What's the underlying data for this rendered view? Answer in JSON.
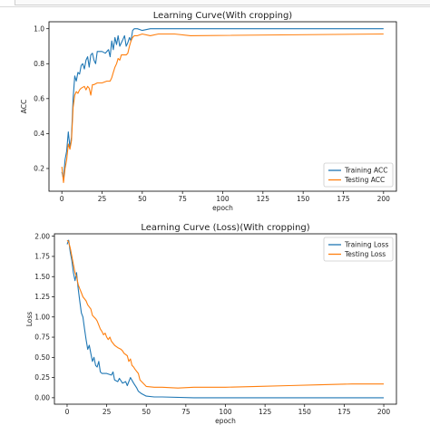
{
  "colors": {
    "training": "#1f77b4",
    "testing": "#ff7f0e"
  },
  "chart_data": [
    {
      "type": "line",
      "title": "Learning Curve(With cropping)",
      "xlabel": "epoch",
      "ylabel": "ACC",
      "xlim": [
        -8,
        208
      ],
      "ylim": [
        0.07,
        1.04
      ],
      "xticks": [
        0,
        25,
        50,
        75,
        100,
        125,
        150,
        175,
        200
      ],
      "yticks": [
        0.2,
        0.4,
        0.6,
        0.8,
        1.0
      ],
      "ytick_labels": [
        "0.2",
        "0.4",
        "0.6",
        "0.8",
        "1.0"
      ],
      "legend": "lower-right",
      "grid": false,
      "series": [
        {
          "name": "Training ACC",
          "points": [
            [
              0,
              0.18
            ],
            [
              1,
              0.14
            ],
            [
              2,
              0.25
            ],
            [
              3,
              0.3
            ],
            [
              4,
              0.41
            ],
            [
              5,
              0.32
            ],
            [
              6,
              0.38
            ],
            [
              7,
              0.6
            ],
            [
              8,
              0.73
            ],
            [
              9,
              0.7
            ],
            [
              10,
              0.75
            ],
            [
              11,
              0.74
            ],
            [
              12,
              0.79
            ],
            [
              13,
              0.8
            ],
            [
              14,
              0.77
            ],
            [
              15,
              0.82
            ],
            [
              16,
              0.84
            ],
            [
              17,
              0.78
            ],
            [
              18,
              0.85
            ],
            [
              19,
              0.86
            ],
            [
              20,
              0.82
            ],
            [
              21,
              0.8
            ],
            [
              22,
              0.87
            ],
            [
              23,
              0.87
            ],
            [
              25,
              0.87
            ],
            [
              27,
              0.86
            ],
            [
              29,
              0.88
            ],
            [
              30,
              0.84
            ],
            [
              31,
              0.93
            ],
            [
              32,
              0.88
            ],
            [
              33,
              0.95
            ],
            [
              34,
              0.91
            ],
            [
              35,
              0.96
            ],
            [
              36,
              0.9
            ],
            [
              37,
              0.92
            ],
            [
              38,
              0.94
            ],
            [
              39,
              0.96
            ],
            [
              40,
              0.9
            ],
            [
              41,
              0.92
            ],
            [
              42,
              0.95
            ],
            [
              43,
              0.93
            ],
            [
              44,
              0.99
            ],
            [
              45,
              1.0
            ],
            [
              47,
              1.0
            ],
            [
              50,
              0.99
            ],
            [
              55,
              1.0
            ],
            [
              200,
              1.0
            ]
          ]
        },
        {
          "name": "Testing ACC",
          "points": [
            [
              0,
              0.21
            ],
            [
              1,
              0.12
            ],
            [
              2,
              0.2
            ],
            [
              3,
              0.25
            ],
            [
              4,
              0.34
            ],
            [
              5,
              0.31
            ],
            [
              6,
              0.36
            ],
            [
              7,
              0.55
            ],
            [
              8,
              0.62
            ],
            [
              9,
              0.64
            ],
            [
              10,
              0.63
            ],
            [
              11,
              0.65
            ],
            [
              12,
              0.66
            ],
            [
              14,
              0.67
            ],
            [
              15,
              0.65
            ],
            [
              16,
              0.67
            ],
            [
              17,
              0.66
            ],
            [
              18,
              0.62
            ],
            [
              19,
              0.68
            ],
            [
              20,
              0.68
            ],
            [
              22,
              0.69
            ],
            [
              25,
              0.69
            ],
            [
              28,
              0.7
            ],
            [
              30,
              0.7
            ],
            [
              31,
              0.72
            ],
            [
              32,
              0.75
            ],
            [
              33,
              0.78
            ],
            [
              34,
              0.8
            ],
            [
              35,
              0.83
            ],
            [
              36,
              0.82
            ],
            [
              37,
              0.85
            ],
            [
              38,
              0.85
            ],
            [
              40,
              0.85
            ],
            [
              41,
              0.86
            ],
            [
              42,
              0.9
            ],
            [
              43,
              0.93
            ],
            [
              44,
              0.95
            ],
            [
              45,
              0.96
            ],
            [
              47,
              0.96
            ],
            [
              50,
              0.97
            ],
            [
              55,
              0.96
            ],
            [
              60,
              0.97
            ],
            [
              70,
              0.97
            ],
            [
              80,
              0.96
            ],
            [
              200,
              0.97
            ]
          ]
        }
      ]
    },
    {
      "type": "line",
      "title": "Learning Curve (Loss)(With cropping)",
      "xlabel": "epoch",
      "ylabel": "Loss",
      "xlim": [
        -8,
        208
      ],
      "ylim": [
        -0.08,
        2.03
      ],
      "xticks": [
        0,
        25,
        50,
        75,
        100,
        125,
        150,
        175,
        200
      ],
      "yticks": [
        0.0,
        0.25,
        0.5,
        0.75,
        1.0,
        1.25,
        1.5,
        1.75,
        2.0
      ],
      "ytick_labels": [
        "0.00",
        "0.25",
        "0.50",
        "0.75",
        "1.00",
        "1.25",
        "1.50",
        "1.75",
        "2.00"
      ],
      "legend": "upper-right",
      "grid": false,
      "series": [
        {
          "name": "Training Loss",
          "points": [
            [
              0,
              1.9
            ],
            [
              1,
              1.95
            ],
            [
              2,
              1.8
            ],
            [
              3,
              1.7
            ],
            [
              4,
              1.55
            ],
            [
              5,
              1.45
            ],
            [
              6,
              1.55
            ],
            [
              7,
              1.35
            ],
            [
              8,
              1.2
            ],
            [
              9,
              1.05
            ],
            [
              10,
              1.0
            ],
            [
              11,
              0.85
            ],
            [
              12,
              0.72
            ],
            [
              13,
              0.6
            ],
            [
              14,
              0.65
            ],
            [
              15,
              0.55
            ],
            [
              16,
              0.45
            ],
            [
              17,
              0.5
            ],
            [
              18,
              0.4
            ],
            [
              19,
              0.38
            ],
            [
              20,
              0.45
            ],
            [
              21,
              0.32
            ],
            [
              22,
              0.3
            ],
            [
              25,
              0.3
            ],
            [
              28,
              0.28
            ],
            [
              29,
              0.32
            ],
            [
              30,
              0.22
            ],
            [
              32,
              0.2
            ],
            [
              33,
              0.24
            ],
            [
              35,
              0.18
            ],
            [
              37,
              0.2
            ],
            [
              38,
              0.15
            ],
            [
              40,
              0.25
            ],
            [
              42,
              0.18
            ],
            [
              44,
              0.12
            ],
            [
              45,
              0.08
            ],
            [
              47,
              0.05
            ],
            [
              50,
              0.02
            ],
            [
              55,
              0.01
            ],
            [
              60,
              0.01
            ],
            [
              80,
              0.0
            ],
            [
              200,
              0.0
            ]
          ]
        },
        {
          "name": "Testing Loss",
          "points": [
            [
              0,
              1.95
            ],
            [
              1,
              1.93
            ],
            [
              2,
              1.85
            ],
            [
              3,
              1.75
            ],
            [
              4,
              1.65
            ],
            [
              5,
              1.55
            ],
            [
              6,
              1.5
            ],
            [
              7,
              1.4
            ],
            [
              8,
              1.35
            ],
            [
              9,
              1.3
            ],
            [
              10,
              1.25
            ],
            [
              12,
              1.2
            ],
            [
              13,
              1.15
            ],
            [
              15,
              1.1
            ],
            [
              16,
              1.02
            ],
            [
              17,
              1.0
            ],
            [
              18,
              0.98
            ],
            [
              19,
              0.95
            ],
            [
              20,
              0.9
            ],
            [
              21,
              0.85
            ],
            [
              22,
              0.82
            ],
            [
              23,
              0.78
            ],
            [
              24,
              0.8
            ],
            [
              25,
              0.75
            ],
            [
              26,
              0.72
            ],
            [
              27,
              0.75
            ],
            [
              28,
              0.7
            ],
            [
              30,
              0.65
            ],
            [
              32,
              0.62
            ],
            [
              34,
              0.6
            ],
            [
              35,
              0.58
            ],
            [
              36,
              0.55
            ],
            [
              38,
              0.52
            ],
            [
              39,
              0.45
            ],
            [
              40,
              0.48
            ],
            [
              41,
              0.4
            ],
            [
              42,
              0.38
            ],
            [
              43,
              0.35
            ],
            [
              45,
              0.3
            ],
            [
              46,
              0.22
            ],
            [
              48,
              0.18
            ],
            [
              50,
              0.14
            ],
            [
              55,
              0.13
            ],
            [
              60,
              0.13
            ],
            [
              70,
              0.12
            ],
            [
              80,
              0.13
            ],
            [
              100,
              0.13
            ],
            [
              120,
              0.14
            ],
            [
              140,
              0.15
            ],
            [
              160,
              0.16
            ],
            [
              180,
              0.17
            ],
            [
              200,
              0.17
            ]
          ]
        }
      ]
    }
  ]
}
